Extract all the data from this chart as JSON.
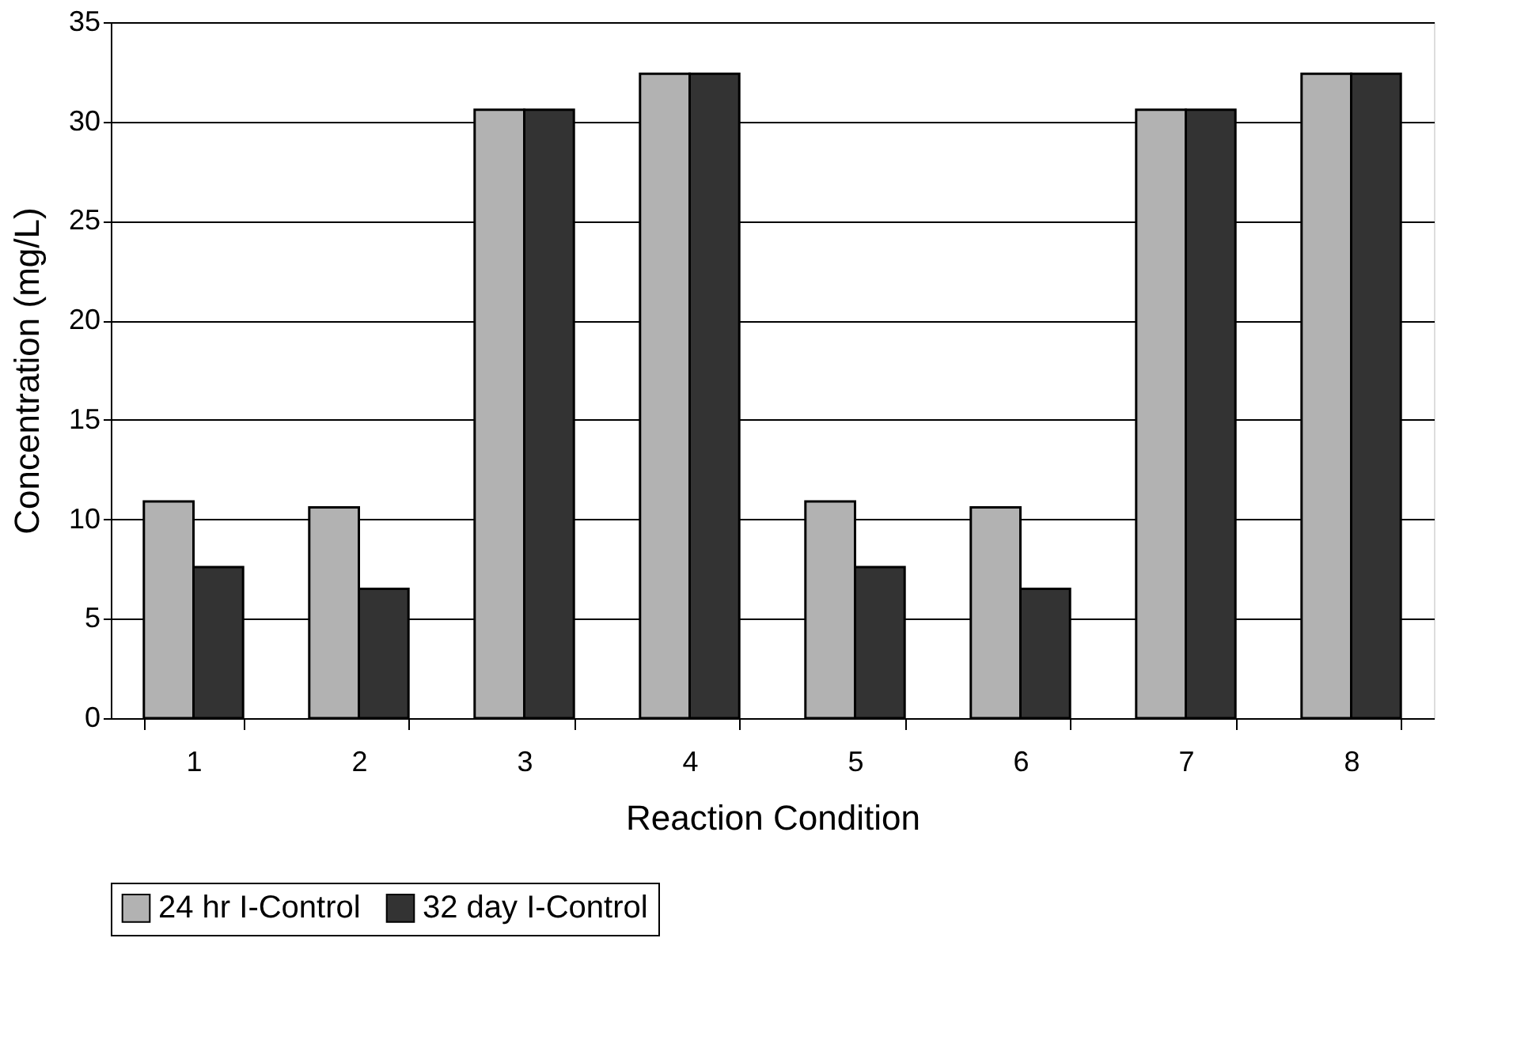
{
  "chart_data": {
    "type": "bar",
    "xlabel": "Reaction Condition",
    "ylabel": "Concentration (mg/L)",
    "categories": [
      "1",
      "2",
      "3",
      "4",
      "5",
      "6",
      "7",
      "8"
    ],
    "series": [
      {
        "name": "24 hr I-Control",
        "color": "#b2b2b2",
        "values": [
          10.9,
          10.6,
          30.6,
          32.4,
          10.9,
          10.6,
          30.6,
          32.4
        ]
      },
      {
        "name": "32 day I-Control",
        "color": "#333333",
        "values": [
          7.6,
          6.5,
          30.6,
          32.4,
          7.6,
          6.5,
          30.6,
          32.4
        ]
      }
    ],
    "ylim": [
      0,
      35
    ],
    "yticks": [
      0,
      5,
      10,
      15,
      20,
      25,
      30,
      35
    ],
    "grid": "y",
    "legend": "bottom"
  }
}
